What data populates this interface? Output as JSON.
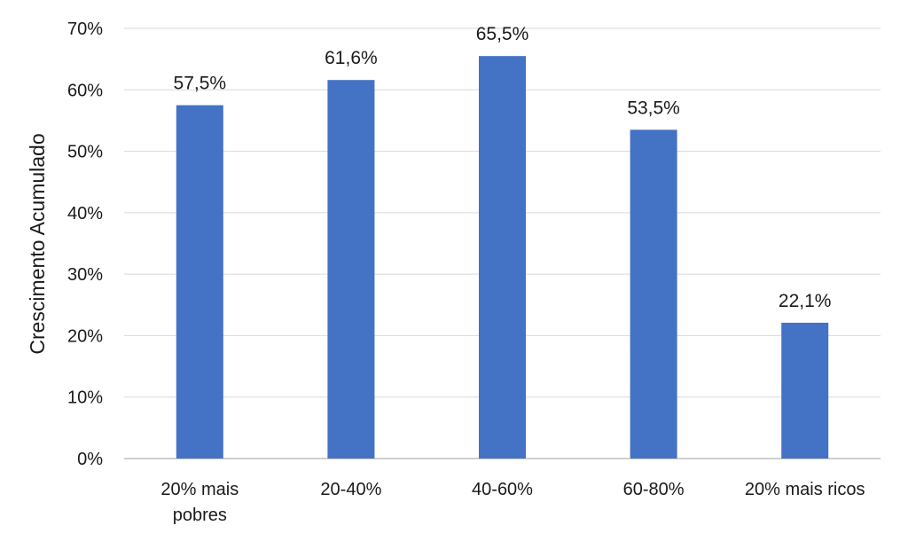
{
  "chart_data": {
    "type": "bar",
    "categories": [
      [
        "20% mais",
        "pobres"
      ],
      [
        "20-40%"
      ],
      [
        "40-60%"
      ],
      [
        "60-80%"
      ],
      [
        "20% mais ricos"
      ]
    ],
    "values": [
      57.5,
      61.6,
      65.5,
      53.5,
      22.1
    ],
    "data_labels": [
      "57,5%",
      "61,6%",
      "65,5%",
      "53,5%",
      "22,1%"
    ],
    "ylabel": "Crescimento Acumulado",
    "ylim": [
      0,
      70
    ],
    "yticks": [
      0,
      10,
      20,
      30,
      40,
      50,
      60,
      70
    ],
    "ytick_labels": [
      "0%",
      "10%",
      "20%",
      "30%",
      "40%",
      "50%",
      "60%",
      "70%"
    ],
    "grid": true,
    "legend": "none",
    "bar_color": "#4472C4",
    "grid_color": "#d9d9d9",
    "axis_color": "#bfbfbf"
  }
}
